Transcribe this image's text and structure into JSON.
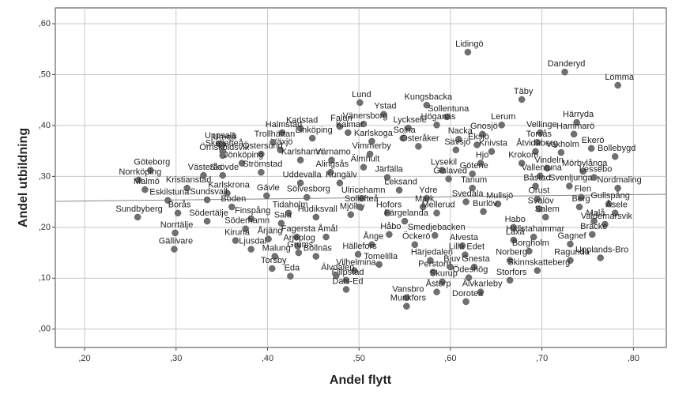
{
  "chart_data": {
    "type": "scatter",
    "x_label": "Andel flytt",
    "y_label": "Andel  utbildning",
    "xlim": [
      0.168,
      0.836
    ],
    "ylim": [
      -0.036,
      0.631
    ],
    "xticks": [
      {
        "value": 0.2,
        "label": ",20"
      },
      {
        "value": 0.3,
        "label": ",30"
      },
      {
        "value": 0.4,
        "label": ",40"
      },
      {
        "value": 0.5,
        "label": ",50"
      },
      {
        "value": 0.6,
        "label": ",60"
      },
      {
        "value": 0.7,
        "label": ",70"
      },
      {
        "value": 0.8,
        "label": ",80"
      }
    ],
    "yticks": [
      {
        "value": 0,
        "label": ",00"
      },
      {
        "value": 0.1,
        "label": ",10"
      },
      {
        "value": 0.2,
        "label": ",20"
      },
      {
        "value": 0.3,
        "label": ",30"
      },
      {
        "value": 0.4,
        "label": ",40"
      },
      {
        "value": 0.5,
        "label": ",50"
      },
      {
        "value": 0.6,
        "label": ",60"
      }
    ],
    "grid": true,
    "color": "#707070",
    "labels": [
      "Lidingö",
      "Danderyd",
      "Lomma",
      "Täby",
      "Lund",
      "Kungsbacka",
      "Ystad",
      "Sollentuna",
      "Lycksele",
      "Höganäs",
      "Vänersborg",
      "Lerum",
      "Härryda",
      "Hammarö",
      "Vellinge",
      "Karlstad",
      "Halmstad",
      "Falun",
      "Kalmar",
      "Uppsala",
      "Linköping",
      "Solna",
      "Gnosjö",
      "Karlskoga",
      "Umeå",
      "Växjö",
      "Trollhättan",
      "Skellefteå",
      "Östersund",
      "Vimmerby",
      "Nacka",
      "Eksjö",
      "Torsås",
      "Österåker",
      "Sävsjö",
      "Knivsta",
      "Åtvidaberg",
      "Ekerö",
      "Vaxholm",
      "Bollebygd",
      "Örnsköldsvik",
      "Jönköping",
      "Karlshamn",
      "Värnamo",
      "Krokom",
      "Vindeln",
      "Hjo",
      "Mörbylånga",
      "Västerås",
      "Skövde",
      "Strömstad",
      "Alingsås",
      "Älmhult",
      "Lysekil",
      "Götene",
      "Vallentuna",
      "Lessebo",
      "Göteborg",
      "Norrköping",
      "Kristianstad",
      "Karlskrona",
      "Uddevalla",
      "Kungälv",
      "Järfälla",
      "Gislaved",
      "Tanum",
      "Båstad",
      "Svenljunga",
      "Nordmaling",
      "Malmö",
      "Eskilstuna",
      "Sundsvall",
      "Gävle",
      "Sölvesborg",
      "Ulricehamn",
      "Leksand",
      "Ydre",
      "Svedala",
      "Mullsjö",
      "Orust",
      "Flen",
      "Gullspång",
      "Boden",
      "Borås",
      "Sundbyberg",
      "Södertälje",
      "Finspång",
      "Tidaholm",
      "Hudiksvall",
      "Mjölby",
      "Hofors",
      "Mark",
      "Mellerud",
      "Burlöv",
      "Svalöv",
      "Berg",
      "Åsele",
      "Sala",
      "Söderhamn",
      "Färgelanda",
      "Norrtälje",
      "Kiruna",
      "Årjäng",
      "Habo",
      "Salem",
      "Malå",
      "Sollefteå",
      "Gällivare",
      "Ljusdal",
      "Fagersta",
      "Hallstahammar",
      "Valdemarsvik",
      "Bräcke",
      "Åmål",
      "Håbo",
      "Smedjebacken",
      "Laxå",
      "Gagnef",
      "Arjeplog",
      "Ånge",
      "Öckerö",
      "Alvesta",
      "Malung",
      "Grums",
      "Bollnäs",
      "Hällefors",
      "Lilla Edet",
      "Borgholm",
      "Norberg",
      "Ragunda",
      "Upplands-Bro",
      "Torsby",
      "Eda",
      "Tomelilla",
      "Härjedalen",
      "Perstorp",
      "Bjuv",
      "Gnesta",
      "Skinnskatteberg",
      "Storfors",
      "Ödeshög",
      "Vilhelmina",
      "Filipstad",
      "Skurup",
      "Älvdalen",
      "Dals-Ed",
      "Vansbro",
      "Åstorp",
      "Älvkarleby",
      "Dorotea",
      "Munkfors"
    ],
    "x": [
      0.619,
      0.725,
      0.783,
      0.678,
      0.501,
      0.574,
      0.527,
      0.596,
      0.554,
      0.585,
      0.505,
      0.656,
      0.738,
      0.735,
      0.698,
      0.436,
      0.416,
      0.479,
      0.488,
      0.347,
      0.449,
      0.548,
      0.635,
      0.514,
      0.351,
      0.414,
      0.406,
      0.351,
      0.393,
      0.512,
      0.609,
      0.629,
      0.695,
      0.565,
      0.606,
      0.645,
      0.693,
      0.754,
      0.721,
      0.78,
      0.351,
      0.372,
      0.436,
      0.47,
      0.678,
      0.706,
      0.633,
      0.745,
      0.33,
      0.351,
      0.393,
      0.469,
      0.505,
      0.591,
      0.624,
      0.698,
      0.757,
      0.272,
      0.259,
      0.312,
      0.356,
      0.436,
      0.479,
      0.531,
      0.598,
      0.624,
      0.693,
      0.73,
      0.783,
      0.266,
      0.291,
      0.334,
      0.399,
      0.443,
      0.503,
      0.544,
      0.574,
      0.617,
      0.652,
      0.695,
      0.743,
      0.773,
      0.361,
      0.302,
      0.258,
      0.334,
      0.382,
      0.423,
      0.453,
      0.491,
      0.531,
      0.57,
      0.585,
      0.636,
      0.697,
      0.741,
      0.78,
      0.415,
      0.376,
      0.55,
      0.299,
      0.365,
      0.401,
      0.669,
      0.704,
      0.757,
      0.501,
      0.298,
      0.382,
      0.432,
      0.691,
      0.769,
      0.755,
      0.464,
      0.533,
      0.583,
      0.669,
      0.731,
      0.433,
      0.514,
      0.561,
      0.613,
      0.408,
      0.434,
      0.453,
      0.499,
      0.616,
      0.686,
      0.665,
      0.731,
      0.764,
      0.405,
      0.425,
      0.522,
      0.578,
      0.581,
      0.6,
      0.626,
      0.695,
      0.665,
      0.62,
      0.495,
      0.486,
      0.591,
      0.475,
      0.486,
      0.552,
      0.585,
      0.633,
      0.617,
      0.552
    ],
    "values": [
      0.544,
      0.505,
      0.479,
      0.451,
      0.445,
      0.44,
      0.422,
      0.417,
      0.395,
      0.401,
      0.403,
      0.401,
      0.406,
      0.383,
      0.386,
      0.394,
      0.386,
      0.398,
      0.386,
      0.364,
      0.375,
      0.375,
      0.383,
      0.369,
      0.362,
      0.352,
      0.367,
      0.349,
      0.344,
      0.344,
      0.373,
      0.362,
      0.367,
      0.359,
      0.352,
      0.349,
      0.349,
      0.355,
      0.347,
      0.339,
      0.341,
      0.326,
      0.332,
      0.332,
      0.326,
      0.316,
      0.326,
      0.31,
      0.302,
      0.302,
      0.308,
      0.308,
      0.318,
      0.312,
      0.305,
      0.301,
      0.298,
      0.312,
      0.293,
      0.277,
      0.267,
      0.287,
      0.287,
      0.298,
      0.295,
      0.277,
      0.281,
      0.281,
      0.277,
      0.274,
      0.253,
      0.254,
      0.262,
      0.259,
      0.257,
      0.273,
      0.257,
      0.25,
      0.246,
      0.256,
      0.259,
      0.246,
      0.24,
      0.228,
      0.22,
      0.212,
      0.217,
      0.228,
      0.22,
      0.225,
      0.228,
      0.24,
      0.228,
      0.231,
      0.236,
      0.24,
      0.228,
      0.208,
      0.197,
      0.212,
      0.189,
      0.174,
      0.177,
      0.2,
      0.22,
      0.212,
      0.24,
      0.157,
      0.157,
      0.181,
      0.181,
      0.206,
      0.186,
      0.181,
      0.186,
      0.184,
      0.175,
      0.167,
      0.163,
      0.166,
      0.166,
      0.164,
      0.143,
      0.15,
      0.143,
      0.147,
      0.146,
      0.153,
      0.135,
      0.135,
      0.14,
      0.119,
      0.104,
      0.127,
      0.135,
      0.112,
      0.122,
      0.122,
      0.115,
      0.096,
      0.101,
      0.115,
      0.096,
      0.093,
      0.105,
      0.078,
      0.062,
      0.073,
      0.073,
      0.054,
      0.045
    ],
    "fit_line": {
      "x": [
        0.168,
        0.836
      ],
      "values": [
        0.251,
        0.265
      ]
    }
  }
}
